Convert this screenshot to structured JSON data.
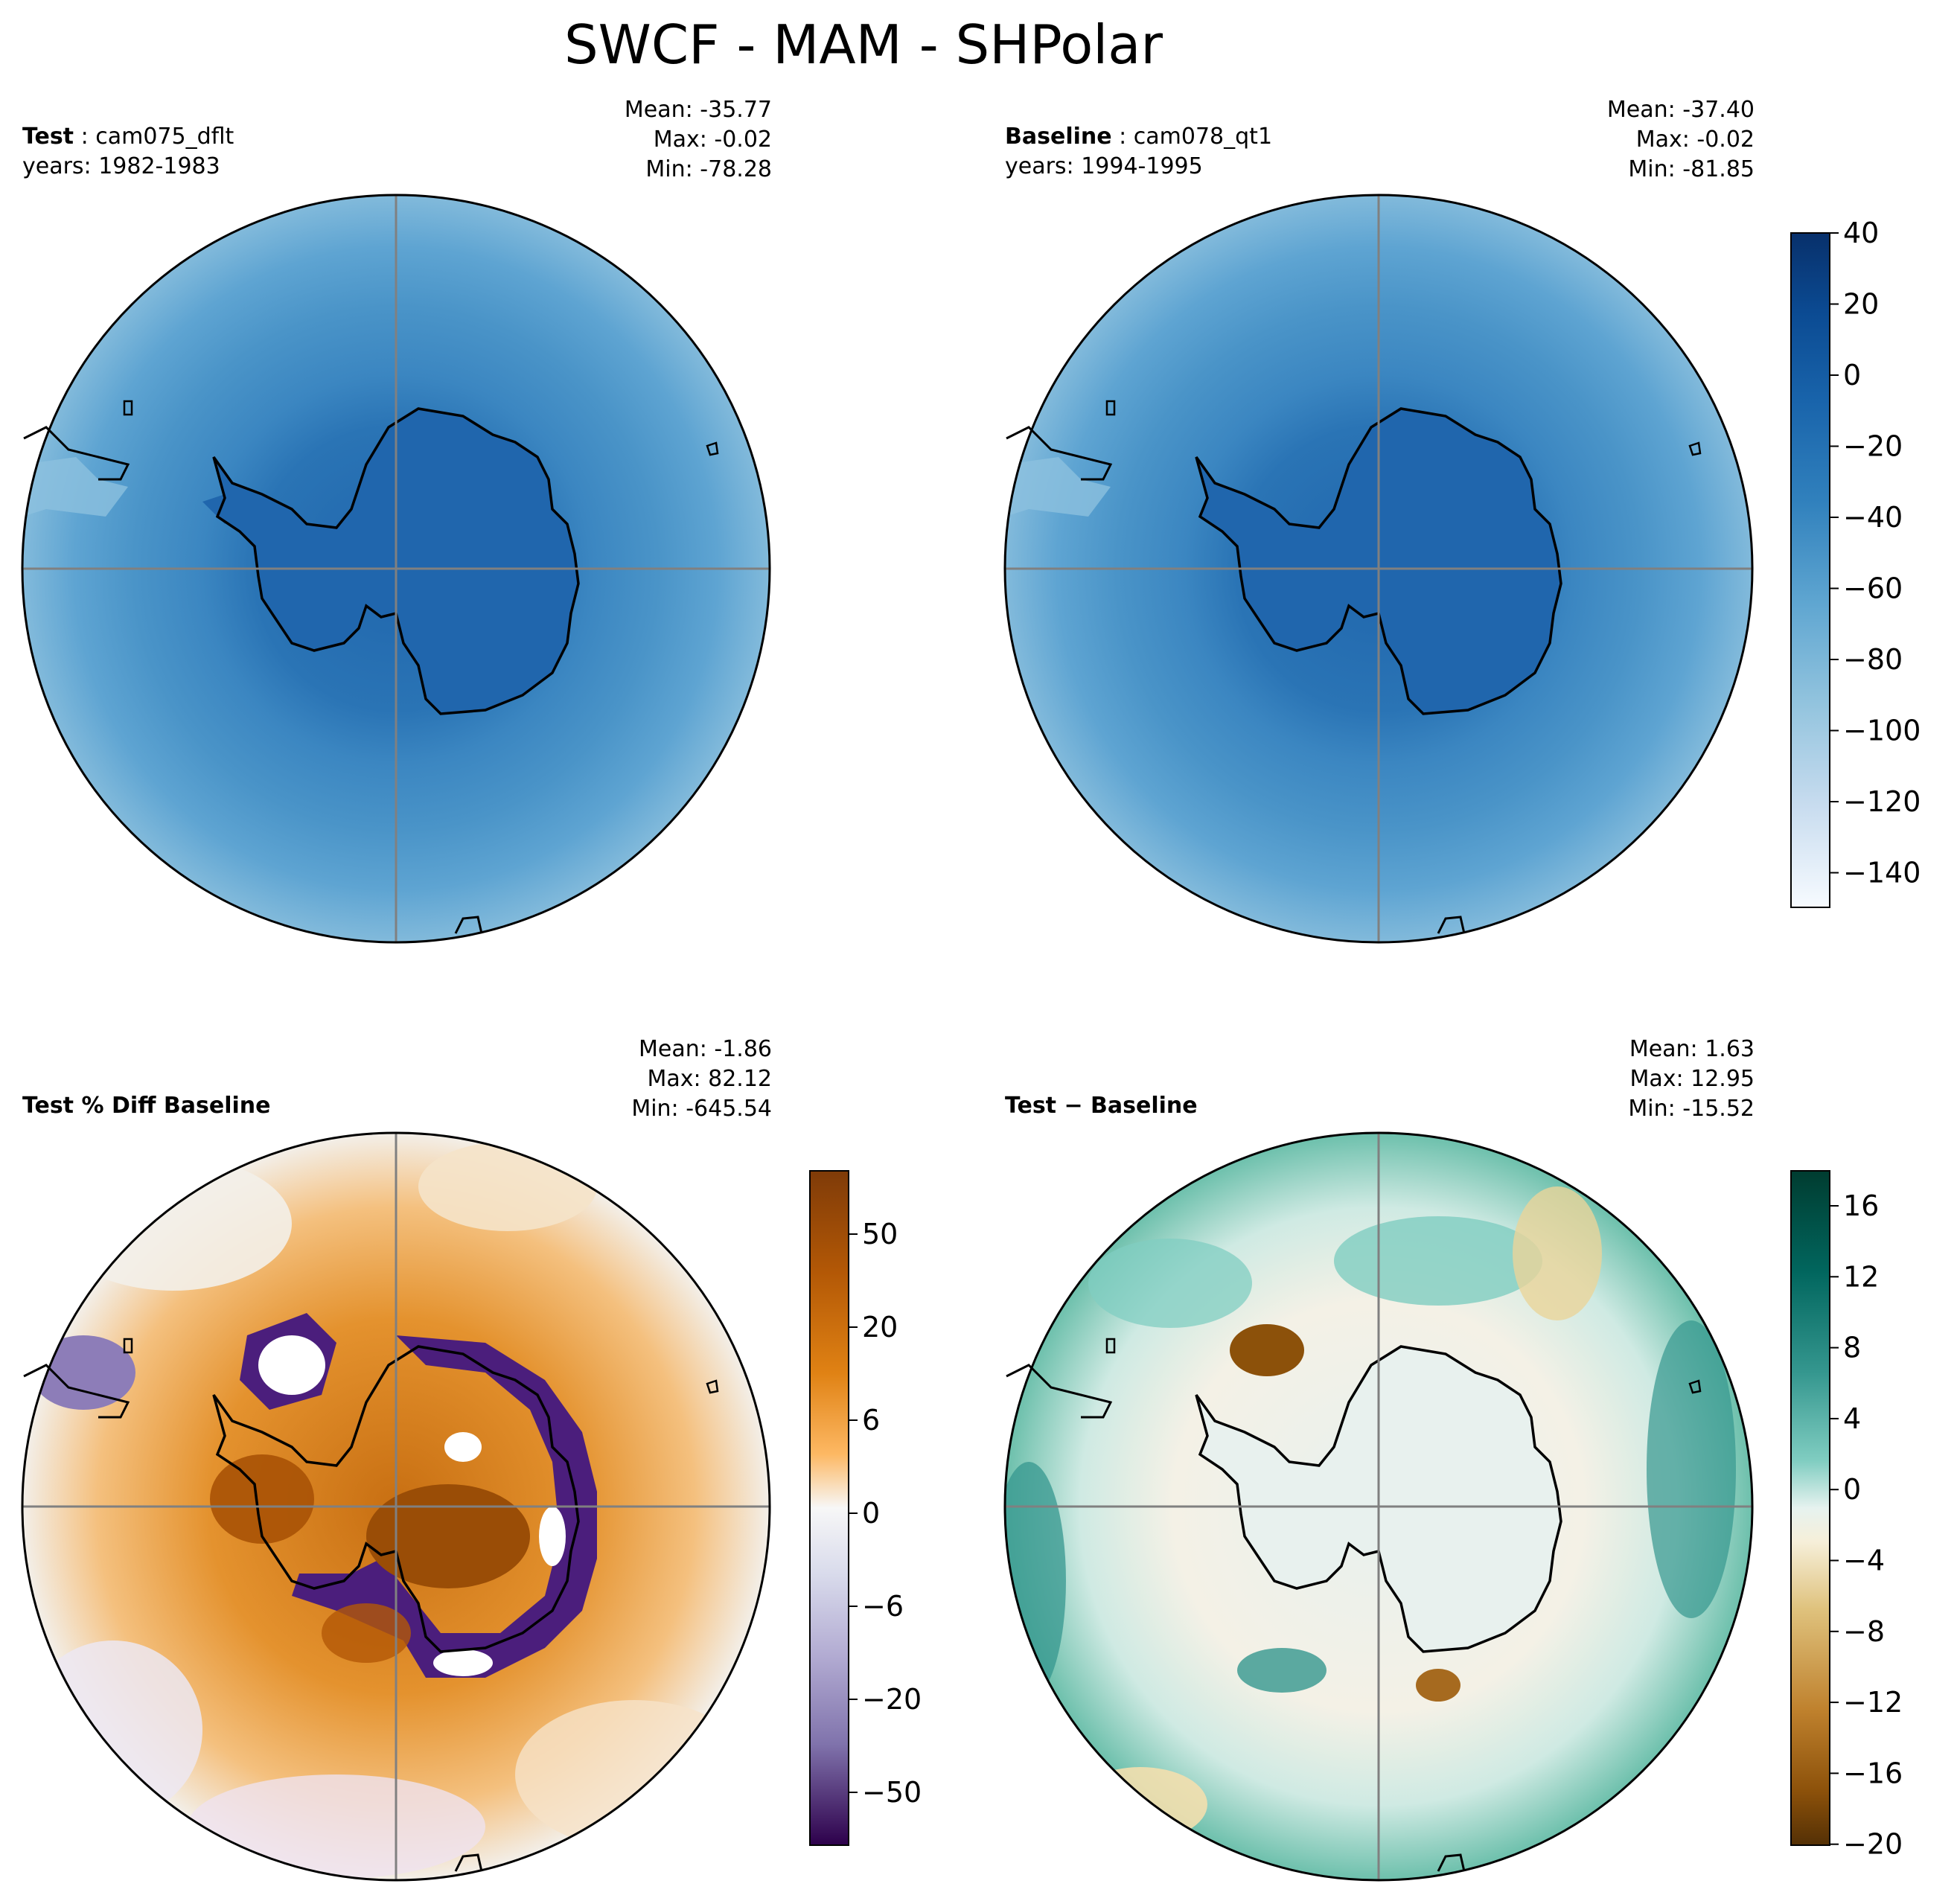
{
  "title": "SWCF - MAM - SHPolar",
  "panels": {
    "test": {
      "label": "Test",
      "case": "cam075_dflt",
      "years": "years: 1982-1983",
      "mean": "Mean: -35.77",
      "max": "Max: -0.02",
      "min": "Min: -78.28"
    },
    "baseline": {
      "label": "Baseline",
      "case": "cam078_qt1",
      "years": "years: 1994-1995",
      "mean": "Mean: -37.40",
      "max": "Max: -0.02",
      "min": "Min: -81.85"
    },
    "pctdiff": {
      "label": "Test % Diff Baseline",
      "mean": "Mean: -1.86",
      "max": "Max: 82.12",
      "min": "Min: -645.54"
    },
    "diff": {
      "label": "Test − Baseline",
      "mean": "Mean:  1.63",
      "max": "Max: 12.95",
      "min": "Min: -15.52"
    }
  },
  "colorbars": {
    "main": {
      "cmap": "Blues_r",
      "labels": [
        "40",
        "20",
        "0",
        "−20",
        "−40",
        "−60",
        "−80",
        "−100",
        "−120",
        "−140"
      ],
      "range": [
        -150,
        40
      ]
    },
    "pctdiff": {
      "cmap": "PuOr_r",
      "labels": [
        "50",
        "20",
        "6",
        "0",
        "−6",
        "−20",
        "−50"
      ]
    },
    "diff": {
      "cmap": "BrBG",
      "labels": [
        "16",
        "12",
        "8",
        "4",
        "0",
        "−4",
        "−8",
        "−12",
        "−16",
        "−20"
      ],
      "range": [
        -20,
        18
      ]
    }
  }
}
